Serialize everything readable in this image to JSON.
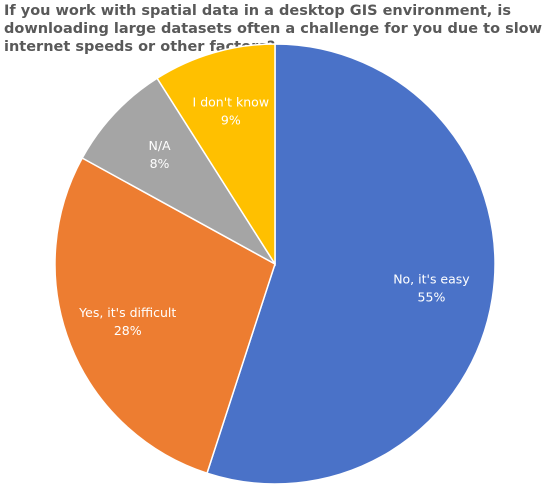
{
  "chart_data": {
    "type": "pie",
    "title": "If you work with spatial data in a desktop GIS environment, is downloading large datasets often a challenge for you due to slow internet speeds or other factors?",
    "categories": [
      "No, it's easy",
      "Yes, it's difficult",
      "N/A",
      "I don't know"
    ],
    "values": [
      55,
      28,
      8,
      9
    ],
    "value_labels": [
      "55%",
      "28%",
      "8%",
      "9%"
    ],
    "colors": [
      "#4a72c8",
      "#ed7d31",
      "#a5a5a5",
      "#ffc000"
    ]
  }
}
